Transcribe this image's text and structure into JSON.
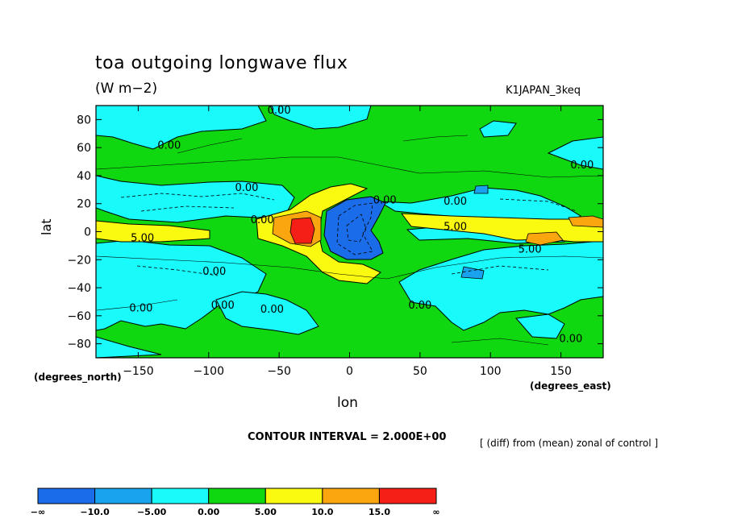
{
  "header": {
    "title": "toa outgoing longwave flux",
    "units": "(W m−2)",
    "run": "K1JAPAN_3keq"
  },
  "axes": {
    "xlabel": "lon",
    "ylabel": "lat",
    "x_units": "(degrees_east)",
    "y_units": "(degrees_north)"
  },
  "footer": {
    "contour_interval": "CONTOUR INTERVAL = 2.000E+00",
    "note": "[ (diff) from (mean) zonal of control ]"
  },
  "chart_data": {
    "type": "heatmap",
    "title": "toa outgoing longwave flux",
    "subtitle": "(W m-2)",
    "xlabel": "lon",
    "ylabel": "lat",
    "xlim": [
      -180,
      180
    ],
    "ylim": [
      -90,
      90
    ],
    "x_ticks": [
      -150,
      -100,
      -50,
      0,
      50,
      100,
      150
    ],
    "y_ticks": [
      80,
      60,
      40,
      20,
      0,
      -20,
      -40,
      -60,
      -80
    ],
    "x_tick_labels": [
      "−150",
      "−100",
      "−50",
      "0",
      "50",
      "100",
      "150"
    ],
    "y_tick_labels": [
      "80",
      "60",
      "40",
      "20",
      "0",
      "−20",
      "−40",
      "−60",
      "−80"
    ],
    "contour_interval": 2.0,
    "contour_labels": [
      {
        "text": "0.00",
        "lon": -50,
        "lat": 87
      },
      {
        "text": "0.00",
        "lon": -128,
        "lat": 62
      },
      {
        "text": "0.00",
        "lon": 165,
        "lat": 48
      },
      {
        "text": "0.00",
        "lon": -73,
        "lat": 32
      },
      {
        "text": "0.00",
        "lon": 25,
        "lat": 23
      },
      {
        "text": "0.00",
        "lon": 75,
        "lat": 22
      },
      {
        "text": "0.00",
        "lon": -62,
        "lat": 9
      },
      {
        "text": "5.00",
        "lon": -147,
        "lat": -4
      },
      {
        "text": "5.00",
        "lon": 75,
        "lat": 4
      },
      {
        "text": "5.00",
        "lon": 128,
        "lat": -12
      },
      {
        "text": "0.00",
        "lon": -96,
        "lat": -28
      },
      {
        "text": "0.00",
        "lon": -90,
        "lat": -52
      },
      {
        "text": "0.00",
        "lon": -55,
        "lat": -55
      },
      {
        "text": "0.00",
        "lon": 50,
        "lat": -52
      },
      {
        "text": "0.00",
        "lon": -148,
        "lat": -54
      },
      {
        "text": "0.00",
        "lon": 157,
        "lat": -76
      }
    ],
    "colorbar": {
      "labels": [
        "−∞",
        "−10.0",
        "−5.00",
        "0.00",
        "5.00",
        "10.0",
        "15.0",
        "∞"
      ],
      "colors": [
        "#1a6ce8",
        "#19a3ee",
        "#19fafa",
        "#10d810",
        "#fafa10",
        "#fba50f",
        "#f51f18"
      ]
    },
    "colors": {
      "deep_negative": "#1a6ce8",
      "negative_10": "#19a3ee",
      "negative_5": "#19fafa",
      "neutral": "#10d810",
      "positive_5": "#fafa10",
      "positive_10": "#fba50f",
      "positive_15": "#f51f18"
    }
  }
}
